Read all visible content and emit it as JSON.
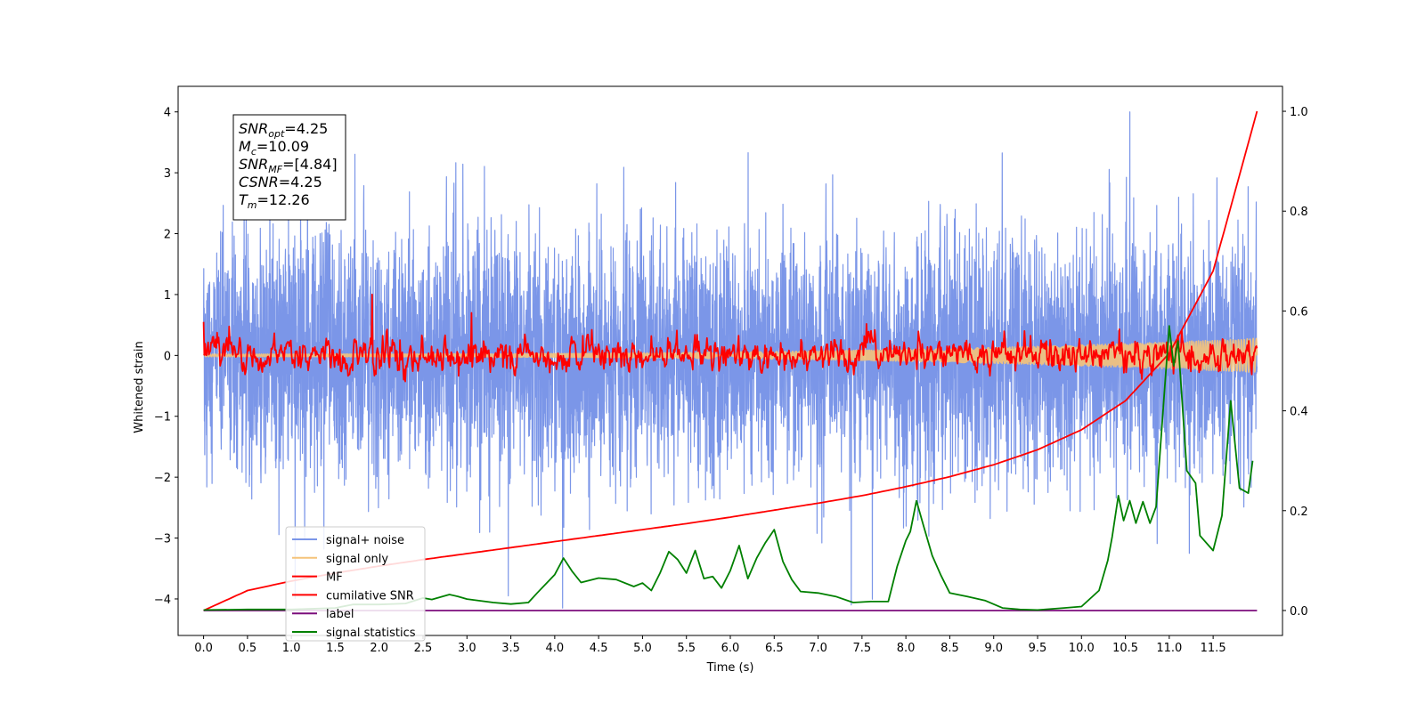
{
  "chart_data": {
    "type": "line",
    "xlabel": "Time (s)",
    "ylabel_left": "Whitened strain",
    "xlim": [
      -0.29,
      12.29
    ],
    "ylim_left": [
      -4.6,
      4.42
    ],
    "ylim_right": [
      -0.05,
      1.05
    ],
    "x_ticks": [
      "0.0",
      "0.5",
      "1.0",
      "1.5",
      "2.0",
      "2.5",
      "3.0",
      "3.5",
      "4.0",
      "4.5",
      "5.0",
      "5.5",
      "6.0",
      "6.5",
      "7.0",
      "7.5",
      "8.0",
      "8.5",
      "9.0",
      "9.5",
      "10.0",
      "10.5",
      "11.0",
      "11.5"
    ],
    "y_ticks_left": [
      "4",
      "3",
      "2",
      "1",
      "0",
      "−1",
      "−2",
      "−3",
      "−4"
    ],
    "y_ticks_right": [
      "1.0",
      "0.8",
      "0.6",
      "0.4",
      "0.2",
      "0.0"
    ],
    "grid": false,
    "legend_position": "lower-left",
    "annotation": [
      {
        "main": "SNR",
        "sub": "opt",
        "value": "=4.25"
      },
      {
        "main": "M",
        "sub": "c",
        "value": "=10.09"
      },
      {
        "main": "SNR",
        "sub": "MF",
        "value": "=[4.84]"
      },
      {
        "main": "CSNR",
        "sub": "",
        "value": "=4.25"
      },
      {
        "main": "T",
        "sub": "m",
        "value": "=12.26"
      }
    ],
    "series": [
      {
        "name": "signal+ noise",
        "color": "#7b96e8",
        "axis": "left",
        "style": "noise",
        "x_range": [
          0.0,
          12.0
        ],
        "amplitude": 1.0,
        "notable_peaks": [
          {
            "x": 10.55,
            "y": 4.0
          },
          {
            "x": 3.47,
            "y": -3.95
          },
          {
            "x": 4.09,
            "y": -4.15
          },
          {
            "x": 11.23,
            "y": -3.25
          }
        ]
      },
      {
        "name": "signal only",
        "color": "#f5c37a",
        "axis": "left",
        "style": "chirp",
        "x_range": [
          0.0,
          12.0
        ],
        "amplitude_start": 0.02,
        "amplitude_end": 0.28
      },
      {
        "name": "MF",
        "color": "#ff0000",
        "axis": "left",
        "style": "noise",
        "x_range": [
          0.0,
          12.0
        ],
        "amplitude": 0.18,
        "notable_peaks": [
          {
            "x": 0.0,
            "y": 0.55
          },
          {
            "x": 1.92,
            "y": 1.0
          },
          {
            "x": 3.05,
            "y": 0.7
          },
          {
            "x": 11.05,
            "y": -0.3
          }
        ]
      },
      {
        "name": "cumilative SNR",
        "color": "#ff0000",
        "axis": "right",
        "x": [
          0.0,
          0.5,
          1.0,
          1.5,
          2.0,
          2.5,
          3.0,
          3.5,
          4.0,
          4.5,
          5.0,
          5.5,
          6.0,
          6.5,
          7.0,
          7.5,
          8.0,
          8.5,
          9.0,
          9.5,
          10.0,
          10.5,
          11.0,
          11.5,
          12.0
        ],
        "y": [
          0.0,
          0.04,
          0.059,
          0.075,
          0.089,
          0.102,
          0.114,
          0.126,
          0.138,
          0.15,
          0.162,
          0.174,
          0.187,
          0.201,
          0.215,
          0.23,
          0.248,
          0.268,
          0.292,
          0.322,
          0.362,
          0.42,
          0.515,
          0.68,
          1.0
        ]
      },
      {
        "name": "label",
        "color": "#7b0c7b",
        "axis": "right",
        "x": [
          0.0,
          12.0
        ],
        "y": [
          0.0,
          0.0
        ]
      },
      {
        "name": "signal statistics",
        "color": "#008000",
        "axis": "right",
        "x": [
          0.0,
          0.5,
          1.0,
          1.5,
          1.7,
          2.0,
          2.3,
          2.5,
          2.6,
          2.8,
          2.9,
          3.0,
          3.3,
          3.5,
          3.7,
          3.8,
          4.0,
          4.1,
          4.2,
          4.3,
          4.5,
          4.7,
          4.9,
          5.0,
          5.1,
          5.2,
          5.3,
          5.4,
          5.5,
          5.6,
          5.7,
          5.8,
          5.9,
          6.0,
          6.1,
          6.2,
          6.3,
          6.4,
          6.5,
          6.6,
          6.7,
          6.8,
          7.0,
          7.2,
          7.4,
          7.6,
          7.8,
          7.9,
          8.0,
          8.05,
          8.12,
          8.2,
          8.3,
          8.4,
          8.5,
          8.7,
          8.9,
          9.1,
          9.3,
          9.5,
          9.8,
          10.0,
          10.2,
          10.3,
          10.35,
          10.42,
          10.48,
          10.55,
          10.62,
          10.7,
          10.78,
          10.85,
          10.95,
          11.0,
          11.05,
          11.1,
          11.2,
          11.3,
          11.35,
          11.5,
          11.6,
          11.7,
          11.8,
          11.9,
          11.95
        ],
        "y": [
          0.001,
          0.002,
          0.002,
          0.005,
          0.012,
          0.012,
          0.014,
          0.025,
          0.022,
          0.032,
          0.028,
          0.023,
          0.016,
          0.013,
          0.016,
          0.035,
          0.072,
          0.105,
          0.078,
          0.056,
          0.065,
          0.062,
          0.048,
          0.055,
          0.04,
          0.075,
          0.118,
          0.102,
          0.075,
          0.12,
          0.064,
          0.068,
          0.045,
          0.08,
          0.13,
          0.064,
          0.105,
          0.136,
          0.162,
          0.098,
          0.062,
          0.038,
          0.035,
          0.028,
          0.016,
          0.018,
          0.018,
          0.088,
          0.14,
          0.158,
          0.22,
          0.17,
          0.11,
          0.07,
          0.035,
          0.028,
          0.02,
          0.005,
          0.002,
          0.001,
          0.005,
          0.008,
          0.04,
          0.1,
          0.148,
          0.23,
          0.18,
          0.22,
          0.175,
          0.218,
          0.175,
          0.208,
          0.45,
          0.57,
          0.49,
          0.54,
          0.28,
          0.255,
          0.15,
          0.12,
          0.19,
          0.42,
          0.245,
          0.235,
          0.3
        ]
      }
    ]
  }
}
